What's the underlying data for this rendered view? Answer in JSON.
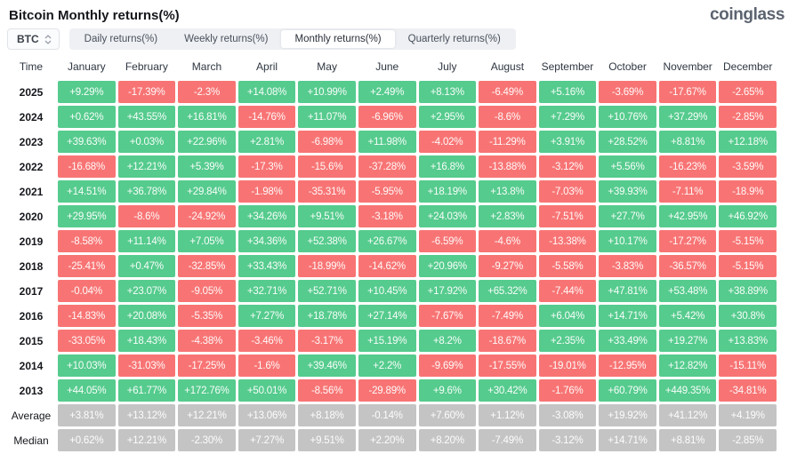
{
  "header": {
    "title": "Bitcoin Monthly returns(%)",
    "logo": "coinglass"
  },
  "toolbar": {
    "symbol": "BTC",
    "tabs": [
      {
        "label": "Daily returns(%)",
        "active": false
      },
      {
        "label": "Weekly returns(%)",
        "active": false
      },
      {
        "label": "Monthly returns(%)",
        "active": true
      },
      {
        "label": "Quarterly returns(%)",
        "active": false
      }
    ]
  },
  "colors": {
    "positive": "#55cb8d",
    "negative": "#f87474",
    "neutral": "#c4c4c4"
  },
  "table": {
    "time_header": "Time",
    "columns": [
      "January",
      "February",
      "March",
      "April",
      "May",
      "June",
      "July",
      "August",
      "September",
      "October",
      "November",
      "December"
    ],
    "rows": [
      {
        "label": "2025",
        "type": "year",
        "values": [
          "+9.29%",
          "-17.39%",
          "-2.3%",
          "+14.08%",
          "+10.99%",
          "+2.49%",
          "+8.13%",
          "-6.49%",
          "+5.16%",
          "-3.69%",
          "-17.67%",
          "-2.65%"
        ]
      },
      {
        "label": "2024",
        "type": "year",
        "values": [
          "+0.62%",
          "+43.55%",
          "+16.81%",
          "-14.76%",
          "+11.07%",
          "-6.96%",
          "+2.95%",
          "-8.6%",
          "+7.29%",
          "+10.76%",
          "+37.29%",
          "-2.85%"
        ]
      },
      {
        "label": "2023",
        "type": "year",
        "values": [
          "+39.63%",
          "+0.03%",
          "+22.96%",
          "+2.81%",
          "-6.98%",
          "+11.98%",
          "-4.02%",
          "-11.29%",
          "+3.91%",
          "+28.52%",
          "+8.81%",
          "+12.18%"
        ]
      },
      {
        "label": "2022",
        "type": "year",
        "values": [
          "-16.68%",
          "+12.21%",
          "+5.39%",
          "-17.3%",
          "-15.6%",
          "-37.28%",
          "+16.8%",
          "-13.88%",
          "-3.12%",
          "+5.56%",
          "-16.23%",
          "-3.59%"
        ]
      },
      {
        "label": "2021",
        "type": "year",
        "values": [
          "+14.51%",
          "+36.78%",
          "+29.84%",
          "-1.98%",
          "-35.31%",
          "-5.95%",
          "+18.19%",
          "+13.8%",
          "-7.03%",
          "+39.93%",
          "-7.11%",
          "-18.9%"
        ]
      },
      {
        "label": "2020",
        "type": "year",
        "values": [
          "+29.95%",
          "-8.6%",
          "-24.92%",
          "+34.26%",
          "+9.51%",
          "-3.18%",
          "+24.03%",
          "+2.83%",
          "-7.51%",
          "+27.7%",
          "+42.95%",
          "+46.92%"
        ]
      },
      {
        "label": "2019",
        "type": "year",
        "values": [
          "-8.58%",
          "+11.14%",
          "+7.05%",
          "+34.36%",
          "+52.38%",
          "+26.67%",
          "-6.59%",
          "-4.6%",
          "-13.38%",
          "+10.17%",
          "-17.27%",
          "-5.15%"
        ]
      },
      {
        "label": "2018",
        "type": "year",
        "values": [
          "-25.41%",
          "+0.47%",
          "-32.85%",
          "+33.43%",
          "-18.99%",
          "-14.62%",
          "+20.96%",
          "-9.27%",
          "-5.58%",
          "-3.83%",
          "-36.57%",
          "-5.15%"
        ]
      },
      {
        "label": "2017",
        "type": "year",
        "values": [
          "-0.04%",
          "+23.07%",
          "-9.05%",
          "+32.71%",
          "+52.71%",
          "+10.45%",
          "+17.92%",
          "+65.32%",
          "-7.44%",
          "+47.81%",
          "+53.48%",
          "+38.89%"
        ]
      },
      {
        "label": "2016",
        "type": "year",
        "values": [
          "-14.83%",
          "+20.08%",
          "-5.35%",
          "+7.27%",
          "+18.78%",
          "+27.14%",
          "-7.67%",
          "-7.49%",
          "+6.04%",
          "+14.71%",
          "+5.42%",
          "+30.8%"
        ]
      },
      {
        "label": "2015",
        "type": "year",
        "values": [
          "-33.05%",
          "+18.43%",
          "-4.38%",
          "-3.46%",
          "-3.17%",
          "+15.19%",
          "+8.2%",
          "-18.67%",
          "+2.35%",
          "+33.49%",
          "+19.27%",
          "+13.83%"
        ]
      },
      {
        "label": "2014",
        "type": "year",
        "values": [
          "+10.03%",
          "-31.03%",
          "-17.25%",
          "-1.6%",
          "+39.46%",
          "+2.2%",
          "-9.69%",
          "-17.55%",
          "-19.01%",
          "-12.95%",
          "+12.82%",
          "-15.11%"
        ]
      },
      {
        "label": "2013",
        "type": "year",
        "values": [
          "+44.05%",
          "+61.77%",
          "+172.76%",
          "+50.01%",
          "-8.56%",
          "-29.89%",
          "+9.6%",
          "+30.42%",
          "-1.76%",
          "+60.79%",
          "+449.35%",
          "-34.81%"
        ]
      },
      {
        "label": "Average",
        "type": "summary",
        "values": [
          "+3.81%",
          "+13.12%",
          "+12.21%",
          "+13.06%",
          "+8.18%",
          "-0.14%",
          "+7.60%",
          "+1.12%",
          "-3.08%",
          "+19.92%",
          "+41.12%",
          "+4.19%"
        ]
      },
      {
        "label": "Median",
        "type": "summary",
        "values": [
          "+0.62%",
          "+12.21%",
          "-2.30%",
          "+7.27%",
          "+9.51%",
          "+2.20%",
          "+8.20%",
          "-7.49%",
          "-3.12%",
          "+14.71%",
          "+8.81%",
          "-2.85%"
        ]
      }
    ]
  }
}
